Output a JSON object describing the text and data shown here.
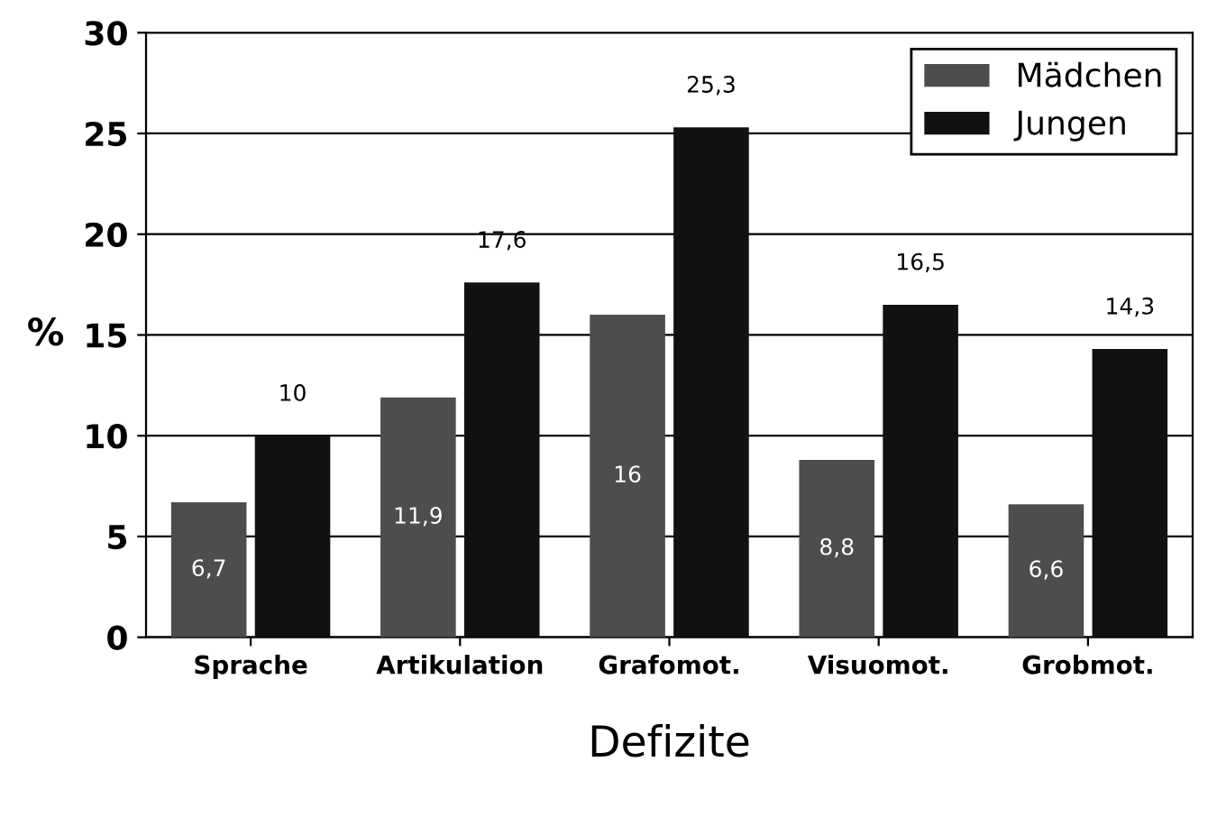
{
  "chart_data": {
    "type": "bar",
    "xlabel": "Defizite",
    "ylabel": "%",
    "categories": [
      "Sprache",
      "Artikulation",
      "Grafomot.",
      "Visuomot.",
      "Grobmot."
    ],
    "series": [
      {
        "name": "Mädchen",
        "color": "#4d4d4d",
        "values": [
          6.7,
          11.9,
          16,
          8.8,
          6.6
        ],
        "value_labels": [
          "6,7",
          "11,9",
          "16",
          "8,8",
          "6,6"
        ]
      },
      {
        "name": "Jungen",
        "color": "#111111",
        "values": [
          10,
          17.6,
          25.3,
          16.5,
          14.3
        ],
        "value_labels": [
          "10",
          "17,6",
          "25,3",
          "16,5",
          "14,3"
        ]
      }
    ],
    "ylim": [
      0,
      30
    ],
    "yticks": [
      0,
      5,
      10,
      15,
      20,
      25,
      30
    ],
    "grid": "y",
    "legend": "top right"
  }
}
